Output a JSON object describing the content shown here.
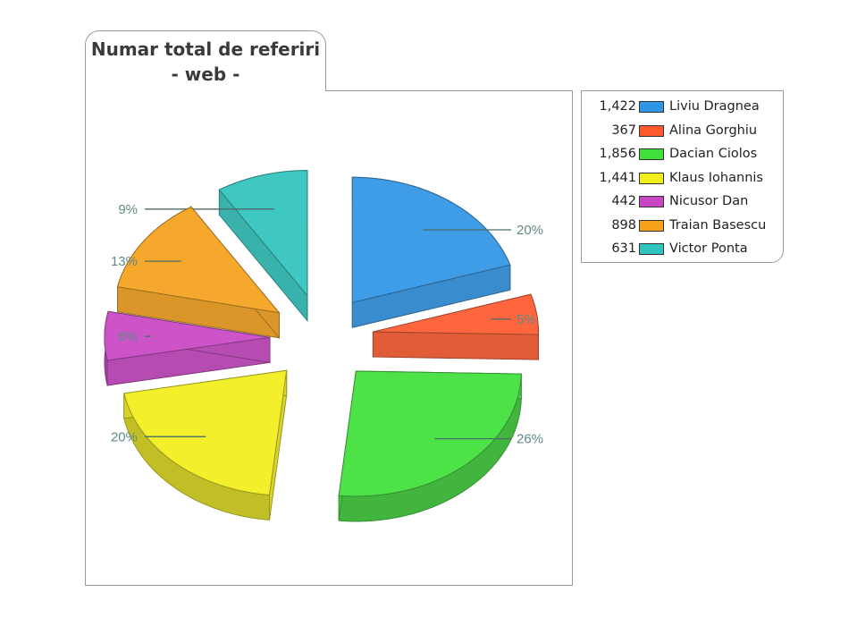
{
  "chart_data": {
    "type": "pie",
    "title_line1": "Numar total de referiri",
    "title_line2": "- web -",
    "slices": [
      {
        "name": "Liviu Dragnea",
        "value": 1422,
        "value_label": "1,422",
        "percent_label": "20%",
        "color": "#2f95e6"
      },
      {
        "name": "Alina Gorghiu",
        "value": 367,
        "value_label": "367",
        "percent_label": "5%",
        "color": "#ff5a2e"
      },
      {
        "name": "Dacian Ciolos",
        "value": 1856,
        "value_label": "1,856",
        "percent_label": "26%",
        "color": "#3fe03a"
      },
      {
        "name": "Klaus Iohannis",
        "value": 1441,
        "value_label": "1,441",
        "percent_label": "20%",
        "color": "#f2ee1a"
      },
      {
        "name": "Nicusor Dan",
        "value": 442,
        "value_label": "442",
        "percent_label": "6%",
        "color": "#c845c4"
      },
      {
        "name": "Traian Basescu",
        "value": 898,
        "value_label": "898",
        "percent_label": "13%",
        "color": "#f5a11a"
      },
      {
        "name": "Victor Ponta",
        "value": 631,
        "value_label": "631",
        "percent_label": "9%",
        "color": "#2fc4bd"
      }
    ],
    "legend_position": "right"
  }
}
